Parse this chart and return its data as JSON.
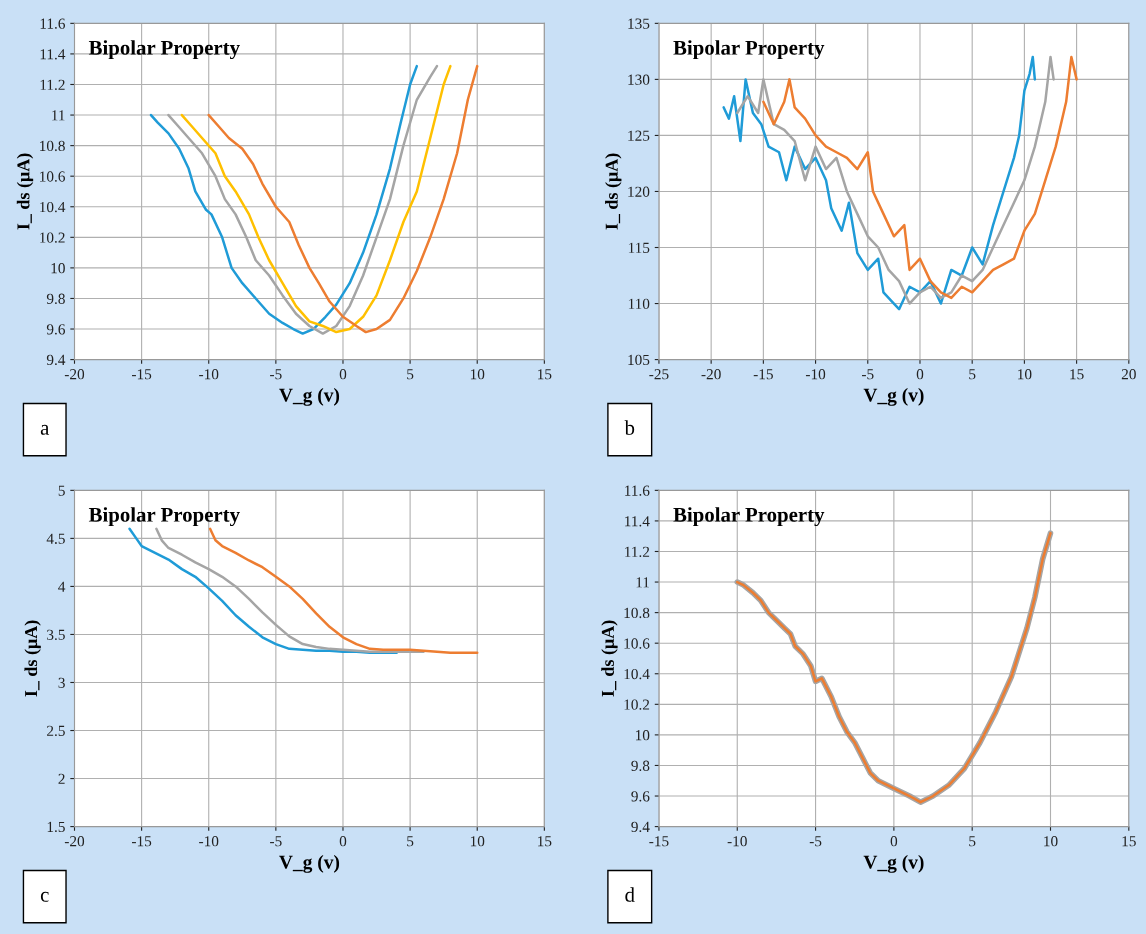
{
  "chart_data": [
    {
      "type": "line",
      "title": "Bipolar Property",
      "xlabel": "V_g (v)",
      "ylabel": "I_ ds (μA)",
      "annotations": [
        "a"
      ],
      "xlim": [
        -20,
        15
      ],
      "xticks": [
        -20,
        -15,
        -10,
        -5,
        0,
        5,
        10,
        15
      ],
      "ylim": [
        9.4,
        11.6
      ],
      "yticks": [
        9.4,
        9.6,
        9.8,
        10,
        10.2,
        10.4,
        10.6,
        10.8,
        11,
        11.2,
        11.4,
        11.6
      ],
      "grid": true,
      "series": [
        {
          "color": "#1f9bd7",
          "x": [
            -14.3,
            -13.8,
            -13,
            -12.2,
            -11.5,
            -11,
            -10.2,
            -9.8,
            -9,
            -8.3,
            -7.5,
            -6.5,
            -5.5,
            -4.5,
            -3.7,
            -3,
            -2.2,
            -1.3,
            -0.5,
            0.5,
            1.5,
            2.5,
            3.5,
            4.3,
            5,
            5.5
          ],
          "values": [
            11.0,
            10.95,
            10.88,
            10.78,
            10.65,
            10.5,
            10.38,
            10.35,
            10.2,
            10.0,
            9.9,
            9.8,
            9.7,
            9.64,
            9.6,
            9.57,
            9.6,
            9.68,
            9.76,
            9.9,
            10.1,
            10.35,
            10.65,
            10.95,
            11.2,
            11.32
          ]
        },
        {
          "color": "#a5a5a5",
          "x": [
            -13,
            -12.3,
            -11.5,
            -10.5,
            -9.5,
            -8.8,
            -8,
            -7.2,
            -6.5,
            -5.5,
            -4.5,
            -3.5,
            -2.5,
            -1.5,
            -0.5,
            0.5,
            1.5,
            2.5,
            3.5,
            4.5,
            5.5,
            6.5,
            7
          ],
          "values": [
            11.0,
            10.93,
            10.85,
            10.75,
            10.6,
            10.45,
            10.35,
            10.2,
            10.05,
            9.95,
            9.82,
            9.7,
            9.62,
            9.57,
            9.62,
            9.75,
            9.95,
            10.2,
            10.45,
            10.8,
            11.1,
            11.25,
            11.32
          ]
        },
        {
          "color": "#ffc000",
          "x": [
            -12,
            -11.3,
            -10.5,
            -9.5,
            -8.8,
            -8,
            -7,
            -6.3,
            -5.5,
            -4.5,
            -3.5,
            -2.5,
            -1.5,
            -0.5,
            0.5,
            1.5,
            2.5,
            3.5,
            4.5,
            5.5,
            6.5,
            7.5,
            8
          ],
          "values": [
            11.0,
            10.93,
            10.85,
            10.75,
            10.6,
            10.5,
            10.35,
            10.2,
            10.05,
            9.9,
            9.75,
            9.65,
            9.62,
            9.58,
            9.6,
            9.68,
            9.82,
            10.05,
            10.3,
            10.5,
            10.85,
            11.2,
            11.32
          ]
        },
        {
          "color": "#ed7d31",
          "x": [
            -10,
            -9.3,
            -8.5,
            -7.5,
            -6.7,
            -6,
            -5,
            -4,
            -3.3,
            -2.5,
            -1.8,
            -1,
            0,
            1,
            1.7,
            2.5,
            3.5,
            4.5,
            5.5,
            6.5,
            7.5,
            8.5,
            9.3,
            10
          ],
          "values": [
            11.0,
            10.93,
            10.85,
            10.78,
            10.68,
            10.55,
            10.4,
            10.3,
            10.15,
            10.0,
            9.9,
            9.78,
            9.68,
            9.62,
            9.58,
            9.6,
            9.66,
            9.8,
            9.98,
            10.2,
            10.45,
            10.75,
            11.1,
            11.32
          ]
        }
      ]
    },
    {
      "type": "line",
      "title": "Bipolar Property",
      "xlabel": "V_g (v)",
      "ylabel": "I_ ds (μA)",
      "annotations": [
        "b"
      ],
      "xlim": [
        -25,
        20
      ],
      "xticks": [
        -25,
        -20,
        -15,
        -10,
        -5,
        0,
        5,
        10,
        15,
        20
      ],
      "ylim": [
        105,
        135
      ],
      "yticks": [
        105,
        110,
        115,
        120,
        125,
        130,
        135
      ],
      "grid": true,
      "series": [
        {
          "color": "#1f9bd7",
          "x": [
            -18.8,
            -18.3,
            -17.8,
            -17.2,
            -16.7,
            -16,
            -15.2,
            -14.5,
            -13.5,
            -12.8,
            -12,
            -11,
            -10,
            -9,
            -8.5,
            -7.5,
            -6.8,
            -6,
            -5,
            -4,
            -3.5,
            -2.5,
            -2,
            -1,
            0,
            1,
            2,
            3,
            4,
            5,
            6,
            7,
            8,
            9,
            9.5,
            10,
            10.5,
            10.8,
            11
          ],
          "values": [
            127.5,
            126.5,
            128.5,
            124.5,
            130,
            127,
            126,
            124,
            123.5,
            121,
            124,
            122,
            123,
            121,
            118.5,
            116.5,
            119,
            114.5,
            113,
            114,
            111,
            110,
            109.5,
            111.5,
            111,
            112,
            110,
            113,
            112.5,
            115,
            113.5,
            117,
            120,
            123,
            125,
            129,
            130.5,
            132,
            130
          ]
        },
        {
          "color": "#a5a5a5",
          "x": [
            -17.5,
            -16.5,
            -15.5,
            -15,
            -14,
            -13,
            -12,
            -11,
            -10,
            -9,
            -8,
            -7,
            -6,
            -5,
            -4,
            -3,
            -2,
            -1,
            0,
            1,
            2,
            3,
            4,
            5,
            6,
            7,
            8,
            9,
            10,
            11,
            12,
            12.5,
            12.8
          ],
          "values": [
            127,
            128.5,
            127,
            130,
            126,
            125.5,
            124.5,
            121,
            124,
            122,
            123,
            120,
            118,
            116,
            115,
            113,
            112,
            110,
            111,
            111.5,
            110.5,
            111,
            112.5,
            112,
            113,
            115,
            117,
            119,
            121,
            124,
            128,
            132,
            130
          ]
        },
        {
          "color": "#ed7d31",
          "x": [
            -15,
            -14,
            -13,
            -12.5,
            -12,
            -11,
            -10,
            -9,
            -8,
            -7,
            -6,
            -5,
            -4.5,
            -3.5,
            -2.5,
            -1.5,
            -1,
            0,
            1,
            2,
            3,
            4,
            5,
            6,
            7,
            8,
            9,
            10,
            11,
            12,
            13,
            14,
            14.5,
            15
          ],
          "values": [
            128,
            126,
            128,
            130,
            127.5,
            126.5,
            125,
            124,
            123.5,
            123,
            122,
            123.5,
            120,
            118,
            116,
            117,
            113,
            114,
            112,
            111,
            110.5,
            111.5,
            111,
            112,
            113,
            113.5,
            114,
            116.5,
            118,
            121,
            124,
            128,
            132,
            130
          ]
        }
      ]
    },
    {
      "type": "line",
      "title": "Bipolar Property",
      "xlabel": "V_g (v)",
      "ylabel": "I_ ds (μA)",
      "annotations": [
        "c"
      ],
      "xlim": [
        -20,
        15
      ],
      "xticks": [
        -20,
        -15,
        -10,
        -5,
        0,
        5,
        10,
        15
      ],
      "ylim": [
        1.5,
        5
      ],
      "yticks": [
        1.5,
        2,
        2.5,
        3,
        3.5,
        4,
        4.5,
        5
      ],
      "grid": true,
      "series": [
        {
          "color": "#1f9bd7",
          "x": [
            -15.9,
            -15.4,
            -15,
            -14,
            -13,
            -12,
            -11,
            -10,
            -9,
            -8,
            -7,
            -6,
            -5,
            -4,
            -3,
            -2,
            -1,
            0,
            1,
            2,
            3,
            4
          ],
          "values": [
            4.6,
            4.5,
            4.42,
            4.35,
            4.28,
            4.18,
            4.1,
            3.98,
            3.85,
            3.7,
            3.58,
            3.47,
            3.4,
            3.35,
            3.34,
            3.33,
            3.33,
            3.32,
            3.32,
            3.31,
            3.31,
            3.31
          ]
        },
        {
          "color": "#a5a5a5",
          "x": [
            -13.9,
            -13.5,
            -13,
            -12,
            -11,
            -10,
            -9,
            -8,
            -7,
            -6,
            -5,
            -4,
            -3,
            -2,
            -1,
            0,
            1,
            2,
            3,
            4,
            6
          ],
          "values": [
            4.6,
            4.48,
            4.4,
            4.33,
            4.25,
            4.18,
            4.1,
            4.0,
            3.87,
            3.73,
            3.6,
            3.48,
            3.4,
            3.37,
            3.35,
            3.34,
            3.33,
            3.32,
            3.32,
            3.32,
            3.32
          ]
        },
        {
          "color": "#ed7d31",
          "x": [
            -9.9,
            -9.5,
            -9,
            -8,
            -7,
            -6,
            -5,
            -4,
            -3,
            -2,
            -1,
            0,
            1,
            2,
            3,
            4,
            5,
            6,
            7,
            8,
            9,
            10
          ],
          "values": [
            4.6,
            4.48,
            4.42,
            4.35,
            4.27,
            4.2,
            4.1,
            4.0,
            3.87,
            3.72,
            3.58,
            3.47,
            3.4,
            3.35,
            3.34,
            3.34,
            3.34,
            3.33,
            3.32,
            3.31,
            3.31,
            3.31
          ]
        }
      ]
    },
    {
      "type": "line",
      "title": "Bipolar Property",
      "xlabel": "V_g (v)",
      "ylabel": "I_ ds (μA)",
      "annotations": [
        "d"
      ],
      "xlim": [
        -15,
        15
      ],
      "xticks": [
        -15,
        -10,
        -5,
        0,
        5,
        10,
        15
      ],
      "ylim": [
        9.4,
        11.6
      ],
      "yticks": [
        9.4,
        9.6,
        9.8,
        10,
        10.2,
        10.4,
        10.6,
        10.8,
        11,
        11.2,
        11.4,
        11.6
      ],
      "grid": true,
      "series": [
        {
          "color": "#a5a5a5",
          "x": [
            -10,
            -9.6,
            -9,
            -8.5,
            -8,
            -7.5,
            -7,
            -6.6,
            -6.3,
            -5.8,
            -5.3,
            -5,
            -4.6,
            -4,
            -3.5,
            -3,
            -2.5,
            -2,
            -1.5,
            -1,
            0,
            1,
            1.7,
            2.5,
            3.5,
            4.5,
            5.5,
            6.5,
            7.5,
            8.5,
            9,
            9.5,
            10
          ],
          "values": [
            11.0,
            10.98,
            10.93,
            10.88,
            10.8,
            10.75,
            10.7,
            10.66,
            10.58,
            10.53,
            10.45,
            10.35,
            10.37,
            10.25,
            10.12,
            10.02,
            9.95,
            9.85,
            9.75,
            9.7,
            9.65,
            9.6,
            9.56,
            9.6,
            9.67,
            9.78,
            9.95,
            10.15,
            10.38,
            10.7,
            10.9,
            11.15,
            11.32
          ]
        },
        {
          "color": "#ed7d31",
          "x": [
            -10,
            -9.6,
            -9,
            -8.5,
            -8,
            -7.5,
            -7,
            -6.6,
            -6.3,
            -5.8,
            -5.3,
            -5,
            -4.6,
            -4,
            -3.5,
            -3,
            -2.5,
            -2,
            -1.5,
            -1,
            0,
            1,
            1.7,
            2.5,
            3.5,
            4.5,
            5.5,
            6.5,
            7.5,
            8.5,
            9,
            9.5,
            10
          ],
          "values": [
            11.0,
            10.98,
            10.93,
            10.88,
            10.8,
            10.75,
            10.7,
            10.66,
            10.58,
            10.53,
            10.45,
            10.35,
            10.37,
            10.25,
            10.12,
            10.02,
            9.95,
            9.85,
            9.75,
            9.7,
            9.65,
            9.6,
            9.56,
            9.6,
            9.67,
            9.78,
            9.95,
            10.15,
            10.38,
            10.7,
            10.9,
            11.15,
            11.32
          ]
        }
      ]
    }
  ]
}
